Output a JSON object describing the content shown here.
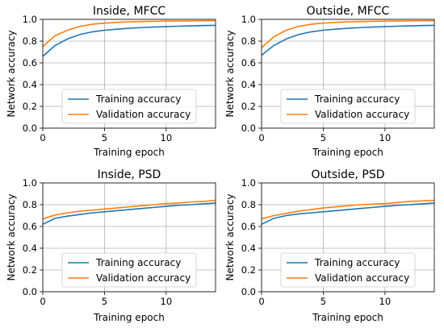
{
  "colors": {
    "training": "#1f77b4",
    "validation": "#ff7f0e"
  },
  "chart_data": [
    {
      "type": "line",
      "title": "Inside, MFCC",
      "xlabel": "Training epoch",
      "ylabel": "Network accuracy",
      "xlim": [
        0,
        14
      ],
      "ylim": [
        0,
        1
      ],
      "xticks": [
        "0",
        "5",
        "10"
      ],
      "yticks": [
        "0.0",
        "0.2",
        "0.4",
        "0.6",
        "0.8",
        "1.0"
      ],
      "grid": true,
      "legend": "lower-center",
      "x": [
        0,
        1,
        2,
        3,
        4,
        5,
        6,
        7,
        8,
        9,
        10,
        11,
        12,
        13,
        14
      ],
      "series": [
        {
          "name": "Training accuracy",
          "values": [
            0.66,
            0.76,
            0.82,
            0.86,
            0.885,
            0.9,
            0.91,
            0.918,
            0.924,
            0.929,
            0.933,
            0.937,
            0.94,
            0.943,
            0.945
          ]
        },
        {
          "name": "Validation accuracy",
          "values": [
            0.75,
            0.85,
            0.9,
            0.935,
            0.955,
            0.965,
            0.972,
            0.977,
            0.98,
            0.982,
            0.984,
            0.985,
            0.986,
            0.987,
            0.988
          ]
        }
      ]
    },
    {
      "type": "line",
      "title": "Outside, MFCC",
      "xlabel": "Training epoch",
      "ylabel": "Network accuracy",
      "xlim": [
        0,
        14
      ],
      "ylim": [
        0,
        1
      ],
      "xticks": [
        "0",
        "5",
        "10"
      ],
      "yticks": [
        "0.0",
        "0.2",
        "0.4",
        "0.6",
        "0.8",
        "1.0"
      ],
      "grid": true,
      "legend": "lower-center",
      "x": [
        0,
        1,
        2,
        3,
        4,
        5,
        6,
        7,
        8,
        9,
        10,
        11,
        12,
        13,
        14
      ],
      "series": [
        {
          "name": "Training accuracy",
          "values": [
            0.67,
            0.76,
            0.82,
            0.86,
            0.885,
            0.9,
            0.91,
            0.918,
            0.924,
            0.929,
            0.933,
            0.937,
            0.94,
            0.943,
            0.945
          ]
        },
        {
          "name": "Validation accuracy",
          "values": [
            0.74,
            0.84,
            0.9,
            0.935,
            0.955,
            0.965,
            0.972,
            0.977,
            0.98,
            0.982,
            0.984,
            0.985,
            0.986,
            0.987,
            0.988
          ]
        }
      ]
    },
    {
      "type": "line",
      "title": "Inside, PSD",
      "xlabel": "Training epoch",
      "ylabel": "Network accuracy",
      "xlim": [
        0,
        14
      ],
      "ylim": [
        0,
        1
      ],
      "xticks": [
        "0",
        "5",
        "10"
      ],
      "yticks": [
        "0.0",
        "0.2",
        "0.4",
        "0.6",
        "0.8",
        "1.0"
      ],
      "grid": true,
      "legend": "lower-center",
      "x": [
        0,
        1,
        2,
        3,
        4,
        5,
        6,
        7,
        8,
        9,
        10,
        11,
        12,
        13,
        14
      ],
      "series": [
        {
          "name": "Training accuracy",
          "values": [
            0.62,
            0.675,
            0.695,
            0.71,
            0.725,
            0.735,
            0.745,
            0.755,
            0.765,
            0.775,
            0.785,
            0.795,
            0.8,
            0.808,
            0.815
          ]
        },
        {
          "name": "Validation accuracy",
          "values": [
            0.67,
            0.705,
            0.725,
            0.74,
            0.75,
            0.76,
            0.77,
            0.78,
            0.79,
            0.8,
            0.81,
            0.815,
            0.825,
            0.83,
            0.84
          ]
        }
      ]
    },
    {
      "type": "line",
      "title": "Outside, PSD",
      "xlabel": "Training epoch",
      "ylabel": "Network accuracy",
      "xlim": [
        0,
        14
      ],
      "ylim": [
        0,
        1
      ],
      "xticks": [
        "0",
        "5",
        "10"
      ],
      "yticks": [
        "0.0",
        "0.2",
        "0.4",
        "0.6",
        "0.8",
        "1.0"
      ],
      "grid": true,
      "legend": "lower-center",
      "x": [
        0,
        1,
        2,
        3,
        4,
        5,
        6,
        7,
        8,
        9,
        10,
        11,
        12,
        13,
        14
      ],
      "series": [
        {
          "name": "Training accuracy",
          "values": [
            0.62,
            0.675,
            0.7,
            0.715,
            0.725,
            0.735,
            0.745,
            0.755,
            0.765,
            0.775,
            0.785,
            0.795,
            0.8,
            0.808,
            0.815
          ]
        },
        {
          "name": "Validation accuracy",
          "values": [
            0.67,
            0.7,
            0.72,
            0.74,
            0.755,
            0.77,
            0.78,
            0.79,
            0.8,
            0.805,
            0.81,
            0.82,
            0.83,
            0.835,
            0.84
          ]
        }
      ]
    }
  ]
}
